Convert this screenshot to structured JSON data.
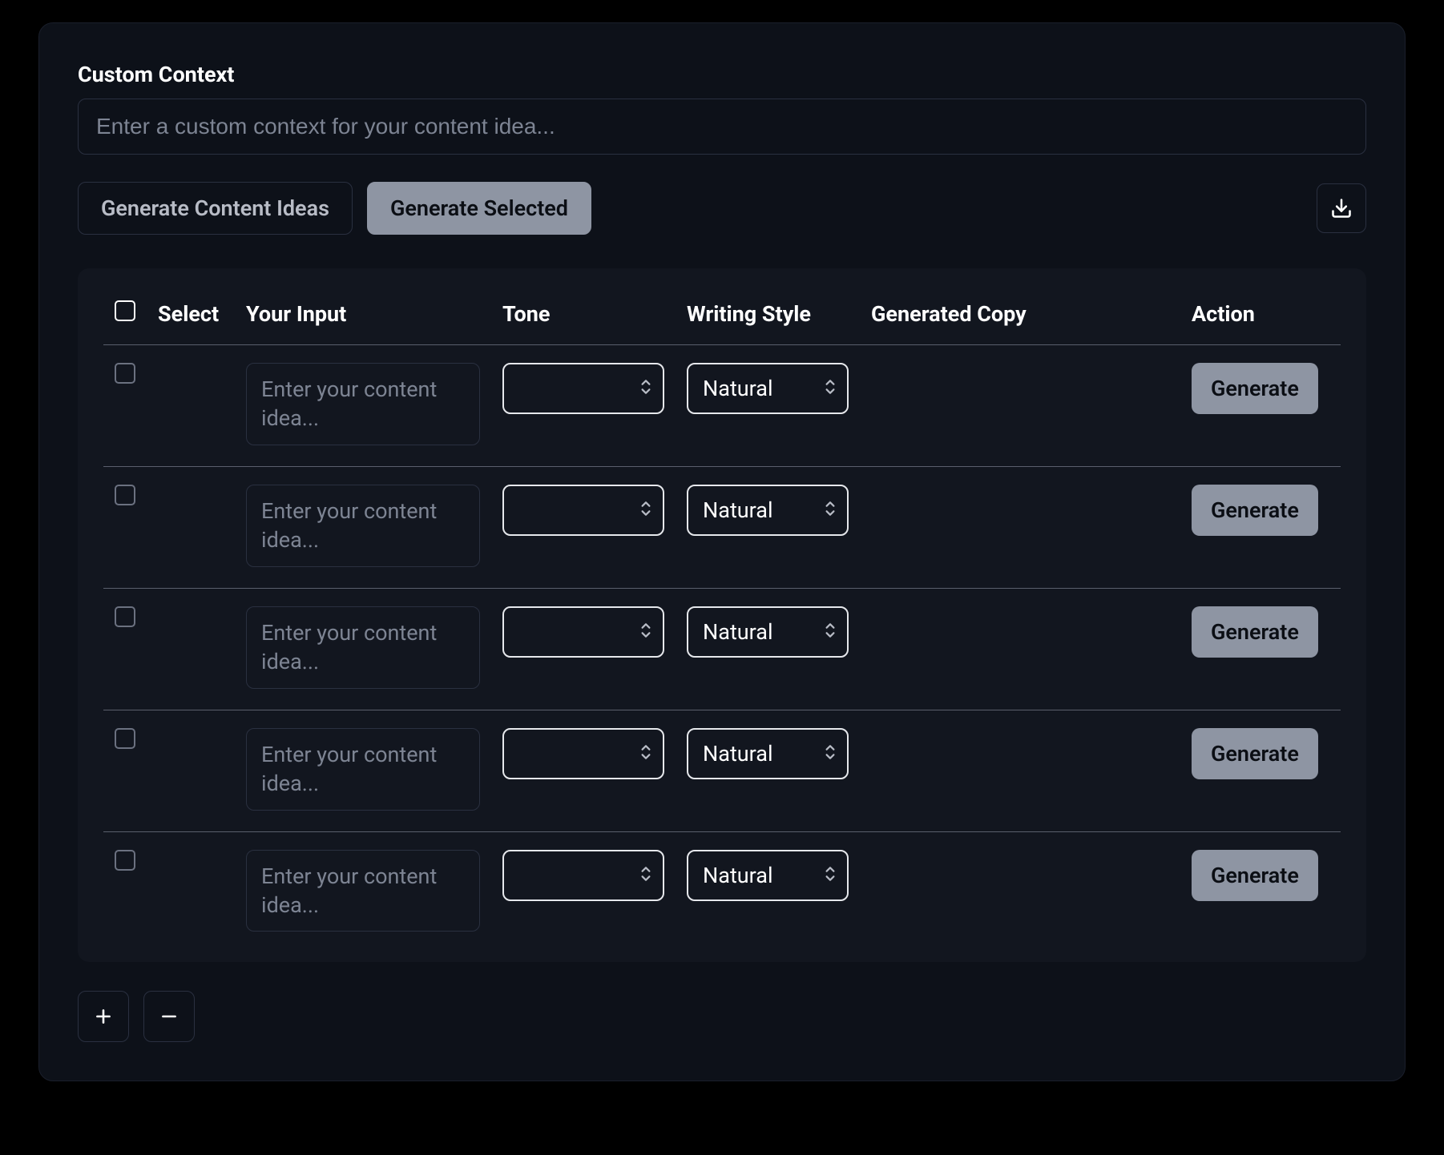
{
  "header": {
    "context_label": "Custom Context",
    "context_placeholder": "Enter a custom context for your content idea..."
  },
  "buttons": {
    "generate_ideas": "Generate Content Ideas",
    "generate_selected": "Generate Selected"
  },
  "table": {
    "columns": {
      "select": "Select",
      "your_input": "Your Input",
      "tone": "Tone",
      "writing_style": "Writing Style",
      "generated_copy": "Generated Copy",
      "action": "Action"
    },
    "rows": [
      {
        "input_placeholder": "Enter your content idea...",
        "tone_value": "",
        "style_value": "Natural",
        "generate_label": "Generate"
      },
      {
        "input_placeholder": "Enter your content idea...",
        "tone_value": "",
        "style_value": "Natural",
        "generate_label": "Generate"
      },
      {
        "input_placeholder": "Enter your content idea...",
        "tone_value": "",
        "style_value": "Natural",
        "generate_label": "Generate"
      },
      {
        "input_placeholder": "Enter your content idea...",
        "tone_value": "",
        "style_value": "Natural",
        "generate_label": "Generate"
      },
      {
        "input_placeholder": "Enter your content idea...",
        "tone_value": "",
        "style_value": "Natural",
        "generate_label": "Generate"
      }
    ]
  },
  "icons": {
    "download": "download-icon",
    "plus": "plus-icon",
    "minus": "minus-icon"
  },
  "colors": {
    "page_bg": "#000000",
    "card_bg": "#0d1119",
    "inner_bg": "#12161f",
    "border": "#2a3040",
    "hr": "#5a5f6c",
    "placeholder": "#7d8493",
    "light_btn_bg": "#8e95a3",
    "select_border": "#e6e8ec",
    "text": "#ffffff"
  }
}
